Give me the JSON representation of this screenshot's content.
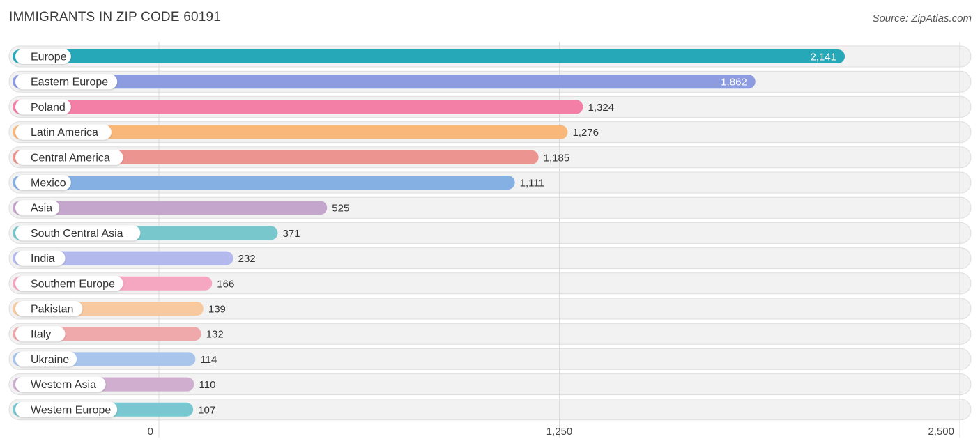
{
  "header": {
    "title": "IMMIGRANTS IN ZIP CODE 60191",
    "source": "Source: ZipAtlas.com"
  },
  "chart_data": {
    "type": "bar",
    "orientation": "horizontal",
    "title": "IMMIGRANTS IN ZIP CODE 60191",
    "xlabel": "",
    "ylabel": "",
    "xlim": [
      0,
      2500
    ],
    "ticks": [
      0,
      1250,
      2500
    ],
    "tick_labels": [
      "0",
      "1,250",
      "2,500"
    ],
    "grid": true,
    "categories": [
      "Europe",
      "Eastern Europe",
      "Poland",
      "Latin America",
      "Central America",
      "Mexico",
      "Asia",
      "South Central Asia",
      "India",
      "Southern Europe",
      "Pakistan",
      "Italy",
      "Ukraine",
      "Western Asia",
      "Western Europe"
    ],
    "values": [
      2141,
      1862,
      1324,
      1276,
      1185,
      1111,
      525,
      371,
      232,
      166,
      139,
      132,
      114,
      110,
      107
    ],
    "value_labels": [
      "2,141",
      "1,862",
      "1,324",
      "1,276",
      "1,185",
      "1,111",
      "525",
      "371",
      "232",
      "166",
      "139",
      "132",
      "114",
      "110",
      "107"
    ],
    "colors": [
      "#27a8b8",
      "#8d9be0",
      "#f47fa6",
      "#f9b87a",
      "#ec948f",
      "#85b0e3",
      "#c4a5cb",
      "#78c7cc",
      "#b3b9ec",
      "#f5a6c1",
      "#f8c99e",
      "#efa9ab",
      "#a9c5ec",
      "#cfaed0",
      "#79c8d1"
    ]
  }
}
